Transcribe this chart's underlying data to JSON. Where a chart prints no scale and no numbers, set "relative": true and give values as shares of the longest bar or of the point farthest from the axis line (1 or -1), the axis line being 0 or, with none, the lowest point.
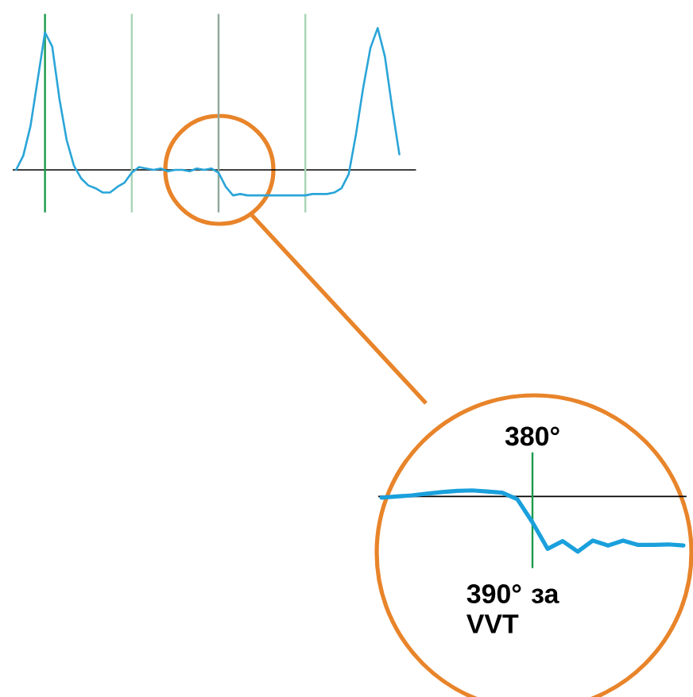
{
  "chart_data": [
    {
      "type": "line",
      "relative": true,
      "color": "#2aa5d8",
      "categories": [
        null,
        null,
        null,
        null,
        null,
        null,
        null,
        null,
        null,
        null,
        null,
        null,
        null,
        null,
        null,
        null,
        null,
        null,
        null,
        null,
        null,
        null,
        null,
        null,
        null,
        null,
        null,
        null,
        null,
        null,
        null,
        null,
        null,
        null,
        null,
        null,
        null,
        null,
        null,
        null,
        null,
        null,
        null,
        null,
        null,
        null,
        null,
        null,
        null,
        null,
        null,
        null,
        null,
        null
      ],
      "values": [
        0,
        0.1,
        0.31,
        0.64,
        0.97,
        0.87,
        0.5,
        0.21,
        0.03,
        -0.06,
        -0.11,
        -0.13,
        -0.16,
        -0.16,
        -0.12,
        -0.09,
        -0.02,
        0.02,
        0.01,
        0,
        0.01,
        -0.01,
        0,
        0,
        -0.01,
        0.01,
        0,
        0.01,
        -0.02,
        -0.12,
        -0.18,
        -0.17,
        -0.18,
        -0.18,
        -0.18,
        -0.18,
        -0.18,
        -0.18,
        -0.18,
        -0.18,
        -0.18,
        -0.17,
        -0.17,
        -0.17,
        -0.16,
        -0.13,
        -0.03,
        0.25,
        0.58,
        0.86,
        1,
        0.8,
        0.44,
        0.11
      ]
    },
    {
      "type": "line",
      "relative": true,
      "color": "#1aa0dc",
      "categories": [
        null,
        null,
        null,
        null,
        null,
        null,
        null,
        null,
        null,
        null,
        null,
        null,
        null,
        null,
        null,
        null,
        null,
        null,
        null,
        null,
        null
      ],
      "values": [
        -0.02,
        0,
        0.02,
        0.05,
        0.08,
        0.1,
        0.11,
        0.09,
        0.07,
        -0.05,
        -0.47,
        -0.95,
        -0.81,
        -1,
        -0.8,
        -0.89,
        -0.8,
        -0.88,
        -0.88,
        -0.87,
        -0.89
      ],
      "annotations": [
        "380°",
        "390° за VVT"
      ]
    }
  ]
}
